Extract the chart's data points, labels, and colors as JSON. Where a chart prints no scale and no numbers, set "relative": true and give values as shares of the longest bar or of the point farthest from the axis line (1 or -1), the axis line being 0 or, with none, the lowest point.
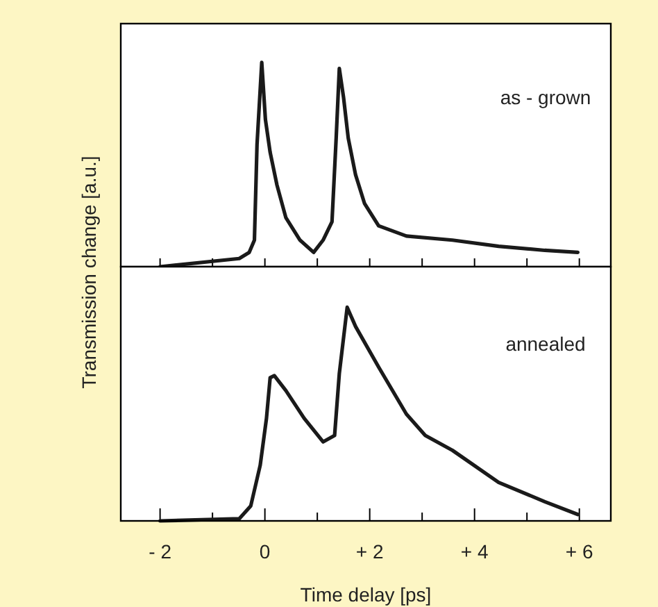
{
  "chart_data": [
    {
      "type": "line",
      "relative": true,
      "ylabel": "Transmission change [a.u.]",
      "annotations": [
        "as - grown"
      ],
      "tick_labels": false,
      "xlim": [
        -2.75,
        6.6
      ],
      "xticks": [
        {
          "value": -2,
          "label": null
        },
        {
          "value": -1,
          "label": null
        },
        {
          "value": 0,
          "label": null
        },
        {
          "value": 1,
          "label": null
        },
        {
          "value": 2,
          "label": null
        },
        {
          "value": 3,
          "label": null
        },
        {
          "value": 4,
          "label": null
        },
        {
          "value": 5,
          "label": null
        },
        {
          "value": 6,
          "label": null
        }
      ],
      "series": [
        {
          "color": "#1a1a1a",
          "x": [
            -2.0,
            -0.49,
            -0.3,
            -0.2,
            -0.15,
            -0.06,
            0.01,
            0.1,
            0.23,
            0.4,
            0.67,
            0.93,
            1.11,
            1.28,
            1.36,
            1.42,
            1.5,
            1.59,
            1.73,
            1.9,
            2.17,
            2.7,
            3.58,
            4.46,
            5.34,
            5.97
          ],
          "values": [
            0.0,
            0.04,
            0.07,
            0.13,
            0.6,
            1.0,
            0.72,
            0.56,
            0.4,
            0.24,
            0.13,
            0.07,
            0.13,
            0.22,
            0.63,
            0.97,
            0.83,
            0.63,
            0.45,
            0.31,
            0.2,
            0.15,
            0.13,
            0.1,
            0.08,
            0.07
          ]
        }
      ]
    },
    {
      "type": "line",
      "relative": true,
      "xlabel": "Time delay [ps]",
      "annotations": [
        "annealed"
      ],
      "tick_labels": "x",
      "xlim": [
        -2.75,
        6.6
      ],
      "xticks": [
        {
          "value": -2,
          "label": "- 2"
        },
        {
          "value": -1,
          "label": null
        },
        {
          "value": 0,
          "label": "0"
        },
        {
          "value": 1,
          "label": null
        },
        {
          "value": 2,
          "label": "+ 2"
        },
        {
          "value": 3,
          "label": null
        },
        {
          "value": 4,
          "label": "+ 4"
        },
        {
          "value": 5,
          "label": null
        },
        {
          "value": 6,
          "label": "+ 6"
        }
      ],
      "series": [
        {
          "color": "#1a1a1a",
          "x": [
            -2.0,
            -0.49,
            -0.27,
            -0.09,
            0.03,
            0.1,
            0.18,
            0.4,
            0.75,
            1.11,
            1.33,
            1.42,
            1.57,
            1.73,
            2.17,
            2.7,
            3.06,
            3.58,
            4.46,
            5.34,
            5.97
          ],
          "values": [
            0.0,
            0.01,
            0.07,
            0.26,
            0.48,
            0.67,
            0.68,
            0.61,
            0.48,
            0.37,
            0.4,
            0.69,
            1.0,
            0.91,
            0.72,
            0.5,
            0.4,
            0.33,
            0.18,
            0.09,
            0.03
          ]
        }
      ]
    }
  ]
}
